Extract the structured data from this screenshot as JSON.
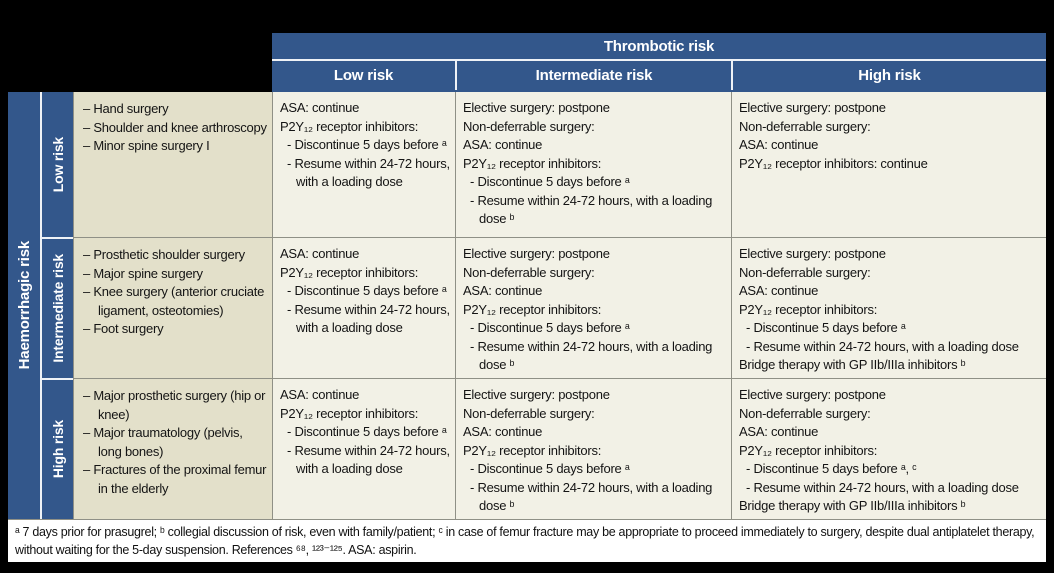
{
  "colors": {
    "header_blue": "#33578b",
    "surgery_beige": "#e3e0ca",
    "cell_cream": "#f2f1e6",
    "grid_line": "#8f9086",
    "frame_black": "#000000",
    "footer_white": "#ffffff"
  },
  "thrombotic_axis": {
    "title": "Thrombotic risk",
    "columns": [
      "Low risk",
      "Intermediate risk",
      "High risk"
    ]
  },
  "haemorrhagic_axis": {
    "title": "Haemorrhagic risk"
  },
  "rows": [
    {
      "label": "Low risk",
      "surgeries": [
        "– Hand surgery",
        "– Shoulder and knee arthroscopy",
        "– Minor spine surgery I"
      ],
      "low_risk": [
        {
          "text": "ASA: continue",
          "indent": 0
        },
        {
          "text": "P2Y₁₂ receptor inhibitors:",
          "indent": 0
        },
        {
          "text": "- Discontinue 5 days before ᵃ",
          "indent": 1
        },
        {
          "text": "- Resume within 24-72 hours, with a loading dose",
          "indent": 1
        }
      ],
      "intermediate_risk": [
        {
          "text": "Elective surgery: postpone",
          "indent": 0
        },
        {
          "text": "Non-deferrable surgery:",
          "indent": 0
        },
        {
          "text": "ASA: continue",
          "indent": 0
        },
        {
          "text": "P2Y₁₂ receptor inhibitors:",
          "indent": 0
        },
        {
          "text": "- Discontinue 5 days before ᵃ",
          "indent": 1
        },
        {
          "text": "- Resume within 24-72 hours, with a loading dose ᵇ",
          "indent": 1
        }
      ],
      "high_risk": [
        {
          "text": "Elective surgery: postpone",
          "indent": 0
        },
        {
          "text": "Non-deferrable surgery:",
          "indent": 0
        },
        {
          "text": "ASA: continue",
          "indent": 0
        },
        {
          "text": "P2Y₁₂ receptor inhibitors: continue",
          "indent": 0
        }
      ]
    },
    {
      "label": "Intermediate risk",
      "surgeries": [
        "– Prosthetic shoulder surgery",
        "– Major spine surgery",
        "– Knee surgery (anterior cruciate ligament, osteotomies)",
        "– Foot surgery"
      ],
      "low_risk": [
        {
          "text": "ASA: continue",
          "indent": 0
        },
        {
          "text": "P2Y₁₂ receptor inhibitors:",
          "indent": 0
        },
        {
          "text": "- Discontinue 5 days before ᵃ",
          "indent": 1
        },
        {
          "text": "- Resume within 24-72 hours, with a loading dose",
          "indent": 1
        }
      ],
      "intermediate_risk": [
        {
          "text": "Elective surgery: postpone",
          "indent": 0
        },
        {
          "text": "Non-deferrable surgery:",
          "indent": 0
        },
        {
          "text": "ASA: continue",
          "indent": 0
        },
        {
          "text": "P2Y₁₂ receptor inhibitors:",
          "indent": 0
        },
        {
          "text": "- Discontinue 5 days before ᵃ",
          "indent": 1
        },
        {
          "text": "- Resume within 24-72 hours, with a loading dose ᵇ",
          "indent": 1
        }
      ],
      "high_risk": [
        {
          "text": "Elective surgery: postpone",
          "indent": 0
        },
        {
          "text": "Non-deferrable surgery:",
          "indent": 0
        },
        {
          "text": "ASA: continue",
          "indent": 0
        },
        {
          "text": "P2Y₁₂ receptor inhibitors:",
          "indent": 0
        },
        {
          "text": "- Discontinue 5 days before ᵃ",
          "indent": 1
        },
        {
          "text": "- Resume within 24-72 hours, with a loading dose",
          "indent": 1
        },
        {
          "text": "Bridge therapy with GP IIb/IIIa inhibitors ᵇ",
          "indent": 0
        }
      ]
    },
    {
      "label": "High risk",
      "surgeries": [
        "– Major prosthetic surgery (hip or knee)",
        "– Major traumatology (pelvis, long bones)",
        "– Fractures of the proximal femur in the elderly"
      ],
      "low_risk": [
        {
          "text": "ASA: continue",
          "indent": 0
        },
        {
          "text": "P2Y₁₂ receptor inhibitors:",
          "indent": 0
        },
        {
          "text": "- Discontinue 5 days before ᵃ",
          "indent": 1
        },
        {
          "text": "- Resume within 24-72 hours, with a loading dose",
          "indent": 1
        }
      ],
      "intermediate_risk": [
        {
          "text": "Elective surgery: postpone",
          "indent": 0
        },
        {
          "text": "Non-deferrable surgery:",
          "indent": 0
        },
        {
          "text": "ASA: continue",
          "indent": 0
        },
        {
          "text": "P2Y₁₂ receptor inhibitors:",
          "indent": 0
        },
        {
          "text": "- Discontinue 5 days before ᵃ",
          "indent": 1
        },
        {
          "text": "- Resume within 24-72 hours, with a loading dose ᵇ",
          "indent": 1
        }
      ],
      "high_risk": [
        {
          "text": "Elective surgery: postpone",
          "indent": 0
        },
        {
          "text": "Non-deferrable surgery:",
          "indent": 0
        },
        {
          "text": "ASA: continue",
          "indent": 0
        },
        {
          "text": "P2Y₁₂ receptor inhibitors:",
          "indent": 0
        },
        {
          "text": "- Discontinue 5 days before ᵃ, ᶜ",
          "indent": 1
        },
        {
          "text": "- Resume within 24-72 hours, with a loading dose",
          "indent": 1
        },
        {
          "text": "Bridge therapy with GP IIb/IIIa inhibitors ᵇ",
          "indent": 0
        }
      ]
    }
  ],
  "footnote": "ᵃ 7 days prior for prasugrel; ᵇ collegial discussion of risk, even with family/patient; ᶜ in case of femur fracture may be appropriate to proceed immediately to surgery, despite dual antiplatelet therapy, without waiting for the 5-day suspension. References ⁶⁸, ¹²³⁻¹²⁵. ASA: aspirin."
}
